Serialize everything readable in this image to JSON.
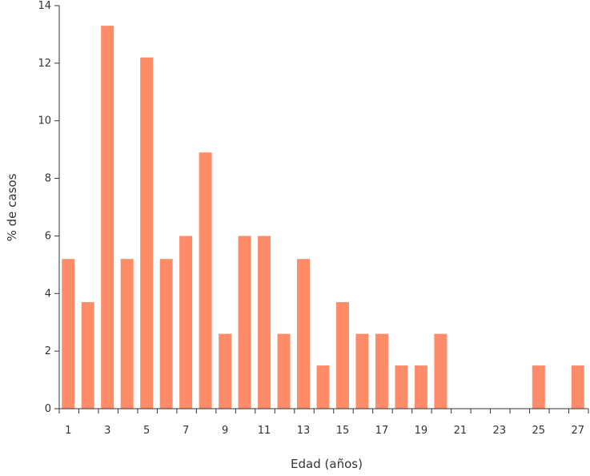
{
  "chart_data": {
    "type": "bar",
    "xlabel": "Edad (años)",
    "ylabel": "% de casos",
    "ylim": [
      0,
      14
    ],
    "y_ticks": [
      0,
      2,
      4,
      6,
      8,
      10,
      12,
      14
    ],
    "categories": [
      1,
      2,
      3,
      4,
      5,
      6,
      7,
      8,
      9,
      10,
      11,
      12,
      13,
      14,
      15,
      16,
      17,
      18,
      19,
      20,
      21,
      22,
      23,
      24,
      25,
      26,
      27
    ],
    "x_tick_labels": [
      "1",
      "3",
      "5",
      "7",
      "9",
      "11",
      "13",
      "15",
      "17",
      "19",
      "21",
      "23",
      "25",
      "27"
    ],
    "values": [
      5.2,
      3.7,
      13.3,
      5.2,
      12.2,
      5.2,
      6.0,
      8.9,
      2.6,
      6.0,
      6.0,
      2.6,
      5.2,
      1.5,
      3.7,
      2.6,
      2.6,
      1.5,
      1.5,
      2.6,
      0,
      0,
      0,
      0,
      1.5,
      0,
      1.5
    ],
    "bar_color": "#ff8c69",
    "axis_color": "#333333",
    "grid": false,
    "legend": "none"
  }
}
